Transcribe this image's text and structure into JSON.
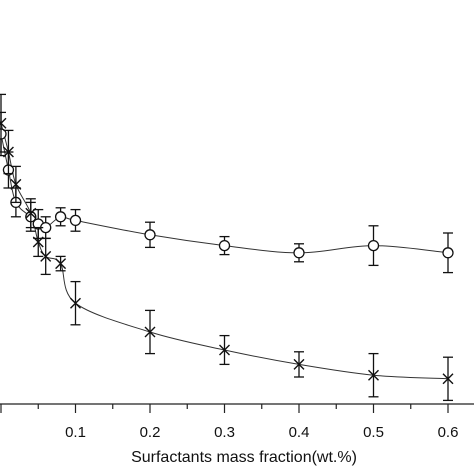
{
  "chart_data": {
    "type": "scatter",
    "title": "",
    "xlabel": "Surfactants mass fraction(wt.%)",
    "ylabel": "",
    "xlim": [
      0.0,
      0.6
    ],
    "ylim": [
      0,
      1
    ],
    "grid": false,
    "legend": "none",
    "x_ticks": [
      {
        "value": 0.1,
        "label": "0.1"
      },
      {
        "value": 0.2,
        "label": "0.2"
      },
      {
        "value": 0.3,
        "label": "0.3"
      },
      {
        "value": 0.4,
        "label": "0.4"
      },
      {
        "value": 0.5,
        "label": "0.5"
      },
      {
        "value": 0.6,
        "label": "0.6"
      }
    ],
    "series": [
      {
        "marker": "circle",
        "points": [
          {
            "x": 0.0,
            "y": 0.75,
            "err": 0.06
          },
          {
            "x": 0.01,
            "y": 0.65,
            "err": 0.05
          },
          {
            "x": 0.02,
            "y": 0.56,
            "err": 0.04
          },
          {
            "x": 0.04,
            "y": 0.52,
            "err": 0.04
          },
          {
            "x": 0.05,
            "y": 0.5,
            "err": 0.04
          },
          {
            "x": 0.06,
            "y": 0.49,
            "err": 0.03
          },
          {
            "x": 0.08,
            "y": 0.52,
            "err": 0.025
          },
          {
            "x": 0.1,
            "y": 0.51,
            "err": 0.03
          },
          {
            "x": 0.2,
            "y": 0.47,
            "err": 0.035
          },
          {
            "x": 0.3,
            "y": 0.44,
            "err": 0.025
          },
          {
            "x": 0.4,
            "y": 0.42,
            "err": 0.025
          },
          {
            "x": 0.5,
            "y": 0.44,
            "err": 0.055
          },
          {
            "x": 0.6,
            "y": 0.42,
            "err": 0.055
          }
        ]
      },
      {
        "marker": "x",
        "points": [
          {
            "x": 0.0,
            "y": 0.78,
            "err": 0.08
          },
          {
            "x": 0.01,
            "y": 0.7,
            "err": 0.06
          },
          {
            "x": 0.02,
            "y": 0.61,
            "err": 0.05
          },
          {
            "x": 0.04,
            "y": 0.53,
            "err": 0.04
          },
          {
            "x": 0.05,
            "y": 0.45,
            "err": 0.04
          },
          {
            "x": 0.06,
            "y": 0.41,
            "err": 0.05
          },
          {
            "x": 0.08,
            "y": 0.39,
            "err": 0.02
          },
          {
            "x": 0.1,
            "y": 0.28,
            "err": 0.06
          },
          {
            "x": 0.2,
            "y": 0.2,
            "err": 0.06
          },
          {
            "x": 0.3,
            "y": 0.15,
            "err": 0.04
          },
          {
            "x": 0.4,
            "y": 0.11,
            "err": 0.035
          },
          {
            "x": 0.5,
            "y": 0.08,
            "err": 0.06
          },
          {
            "x": 0.6,
            "y": 0.07,
            "err": 0.06
          }
        ]
      }
    ]
  }
}
